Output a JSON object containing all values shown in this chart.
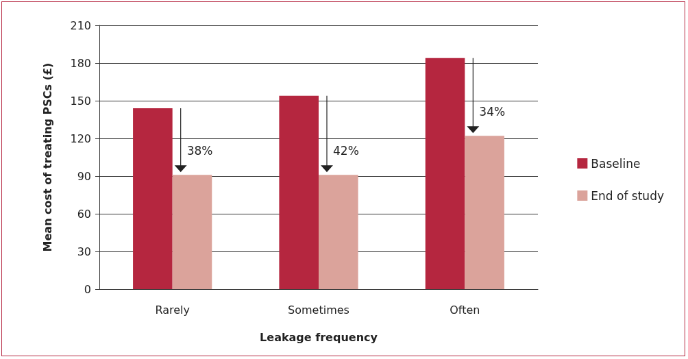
{
  "chart_data": {
    "type": "bar",
    "xlabel": "Leakage frequency",
    "ylabel": "Mean cost of treating PSCs (£)",
    "categories": [
      "Rarely",
      "Sometimes",
      "Often"
    ],
    "series": [
      {
        "name": "Baseline",
        "color": "#b5263f",
        "values": [
          144,
          154,
          184
        ]
      },
      {
        "name": "End of study",
        "color": "#dba39b",
        "values": [
          91,
          91,
          122
        ]
      }
    ],
    "ylim": [
      0,
      210
    ],
    "yticks": [
      0,
      30,
      60,
      90,
      120,
      150,
      180,
      210
    ],
    "grid": "y",
    "legend": "right",
    "annotations": [
      {
        "text": "38%",
        "x": "Rarely",
        "y": 91
      },
      {
        "text": "42%",
        "x": "Sometimes",
        "y": 91
      },
      {
        "text": "34%",
        "x": "Often",
        "y": 122
      }
    ]
  }
}
